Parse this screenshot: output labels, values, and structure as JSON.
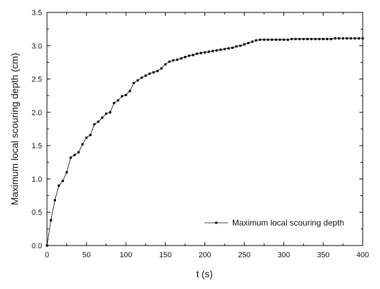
{
  "chart_data": {
    "type": "line",
    "xlabel": "t (s)",
    "ylabel": "Maximum local scouring depth (cm)",
    "xlim": [
      0,
      400
    ],
    "ylim": [
      0.0,
      3.5
    ],
    "x_ticks": [
      0,
      50,
      100,
      150,
      200,
      250,
      300,
      350,
      400
    ],
    "x_tick_labels": [
      "0",
      "50",
      "100",
      "150",
      "200",
      "250",
      "300",
      "350",
      "400"
    ],
    "y_ticks": [
      0.0,
      0.5,
      1.0,
      1.5,
      2.0,
      2.5,
      3.0,
      3.5
    ],
    "y_tick_labels": [
      "0.0",
      "0.5",
      "1.0",
      "1.5",
      "2.0",
      "2.5",
      "3.0",
      "3.5"
    ],
    "grid": false,
    "legend_position": "bottom-right",
    "series_color": "#000000",
    "series": [
      {
        "name": "Maximum local scouring depth",
        "marker": "square",
        "x": [
          0,
          5,
          10,
          15,
          20,
          25,
          30,
          35,
          40,
          45,
          50,
          55,
          60,
          65,
          70,
          75,
          80,
          85,
          90,
          95,
          100,
          105,
          110,
          115,
          120,
          125,
          130,
          135,
          140,
          145,
          150,
          155,
          160,
          165,
          170,
          175,
          180,
          185,
          190,
          195,
          200,
          205,
          210,
          215,
          220,
          225,
          230,
          235,
          240,
          245,
          250,
          255,
          260,
          265,
          270,
          275,
          280,
          285,
          290,
          295,
          300,
          305,
          310,
          315,
          320,
          325,
          330,
          335,
          340,
          345,
          350,
          355,
          360,
          365,
          370,
          375,
          380,
          385,
          390,
          395,
          400
        ],
        "y": [
          0.0,
          0.38,
          0.68,
          0.9,
          0.97,
          1.1,
          1.32,
          1.36,
          1.4,
          1.52,
          1.62,
          1.66,
          1.82,
          1.86,
          1.92,
          1.98,
          2.0,
          2.14,
          2.18,
          2.24,
          2.26,
          2.32,
          2.44,
          2.48,
          2.52,
          2.55,
          2.58,
          2.6,
          2.62,
          2.66,
          2.72,
          2.76,
          2.78,
          2.79,
          2.81,
          2.83,
          2.85,
          2.86,
          2.88,
          2.89,
          2.9,
          2.91,
          2.92,
          2.93,
          2.94,
          2.95,
          2.96,
          2.97,
          2.99,
          3.0,
          3.02,
          3.04,
          3.06,
          3.08,
          3.09,
          3.09,
          3.09,
          3.09,
          3.09,
          3.09,
          3.09,
          3.09,
          3.1,
          3.1,
          3.1,
          3.1,
          3.1,
          3.1,
          3.1,
          3.1,
          3.1,
          3.1,
          3.1,
          3.11,
          3.11,
          3.11,
          3.11,
          3.11,
          3.11,
          3.11,
          3.11
        ]
      }
    ]
  }
}
